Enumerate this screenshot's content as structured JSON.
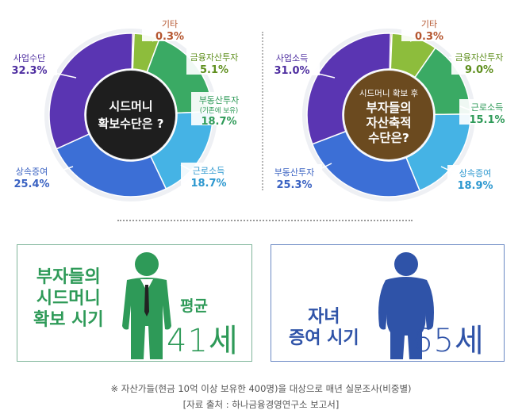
{
  "chart_data": [
    {
      "type": "pie",
      "title": "시드머니 확보수단은 ?",
      "slices": [
        {
          "label": "기타",
          "value": 0.3,
          "color": "#b5562f"
        },
        {
          "label": "금융자산투자",
          "value": 5.1,
          "color": "#8dbd3c"
        },
        {
          "label": "부동산투자",
          "sublabel": "(기존에 보유)",
          "value": 18.7,
          "color": "#3aaa64"
        },
        {
          "label": "근로소득",
          "value": 18.7,
          "color": "#45b3e5"
        },
        {
          "label": "상속증여",
          "value": 25.4,
          "color": "#3c6fd6"
        },
        {
          "label": "사업수단",
          "value": 32.3,
          "color": "#5a35b2"
        }
      ]
    },
    {
      "type": "pie",
      "title": "시드머니 확보 후 부자들의 자산축적 수단은?",
      "title_small": "시드머니 확보 후",
      "title_main": "부자들의 자산축적 수단은?",
      "slices": [
        {
          "label": "기타",
          "value": 0.3,
          "color": "#b5562f"
        },
        {
          "label": "금융자산투자",
          "value": 9.0,
          "color": "#8dbd3c"
        },
        {
          "label": "근로소득",
          "value": 15.1,
          "color": "#3aaa64"
        },
        {
          "label": "상속증여",
          "value": 18.9,
          "color": "#45b3e5"
        },
        {
          "label": "부동산투자",
          "value": 25.3,
          "color": "#3c6fd6"
        },
        {
          "label": "사업소득",
          "value": 31.0,
          "color": "#5a35b2"
        }
      ]
    }
  ],
  "panels": {
    "left": {
      "title": "부자들의\n시드머니\n확보 시기",
      "sub": "평균",
      "age": "41세",
      "color": "#2e9a58"
    },
    "right": {
      "title": "자녀\n증여 시기",
      "age": "65세",
      "color": "#2f53a8"
    }
  },
  "footnote": {
    "line1": "※ 자산가들(현금 10억 이상 보유한 400명)을 대상으로 매년 실문조사(비중별)",
    "line2": "[자료 출처 : 하나금융경영연구소 보고서]"
  }
}
